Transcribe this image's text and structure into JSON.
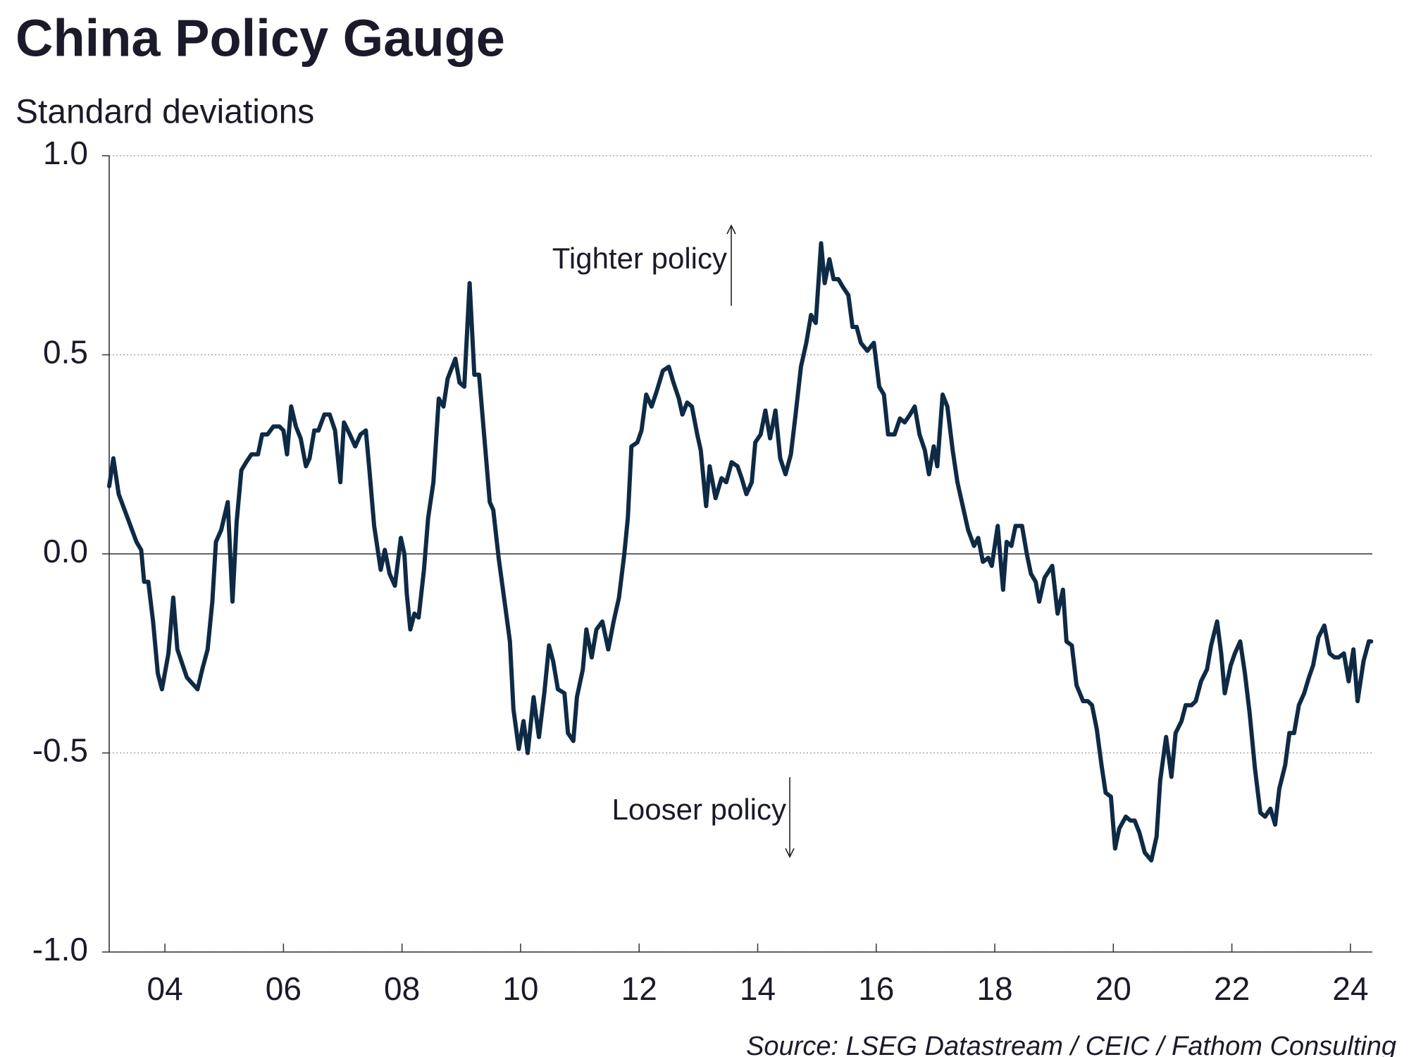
{
  "chart_data": {
    "type": "line",
    "title": "China Policy Gauge",
    "subtitle": "Standard deviations",
    "source": "Source: LSEG Datastream / CEIC / Fathom Consulting",
    "annotations": [
      "Tighter policy",
      "Looser policy"
    ],
    "xlim": [
      2003.06,
      2024.37
    ],
    "xticks": [
      {
        "value": 2004,
        "label": "04"
      },
      {
        "value": 2006,
        "label": "06"
      },
      {
        "value": 2008,
        "label": "08"
      },
      {
        "value": 2010,
        "label": "10"
      },
      {
        "value": 2012,
        "label": "12"
      },
      {
        "value": 2014,
        "label": "14"
      },
      {
        "value": 2016,
        "label": "16"
      },
      {
        "value": 2018,
        "label": "18"
      },
      {
        "value": 2020,
        "label": "20"
      },
      {
        "value": 2022,
        "label": "22"
      },
      {
        "value": 2024,
        "label": "24"
      }
    ],
    "ylim": [
      -1,
      1
    ],
    "yticks": [
      {
        "value": -1,
        "label": "-1.0"
      },
      {
        "value": -0.5,
        "label": "-0.5"
      },
      {
        "value": 0,
        "label": "0.0"
      },
      {
        "value": 0.5,
        "label": "0.5"
      },
      {
        "value": 1,
        "label": "1.0"
      }
    ],
    "grid": true,
    "x": [
      2003.06,
      2003.13,
      2003.22,
      2003.37,
      2003.52,
      2003.6,
      2003.65,
      2003.72,
      2003.8,
      2003.88,
      2003.95,
      2004.06,
      2004.14,
      2004.21,
      2004.37,
      2004.55,
      2004.63,
      2004.72,
      2004.8,
      2004.86,
      2004.95,
      2005.06,
      2005.14,
      2005.21,
      2005.29,
      2005.37,
      2005.46,
      2005.57,
      2005.64,
      2005.73,
      2005.83,
      2005.93,
      2006.0,
      2006.06,
      2006.13,
      2006.21,
      2006.29,
      2006.38,
      2006.44,
      2006.52,
      2006.59,
      2006.69,
      2006.78,
      2006.87,
      2006.96,
      2007.02,
      2007.12,
      2007.21,
      2007.3,
      2007.39,
      2007.45,
      2007.53,
      2007.64,
      2007.71,
      2007.79,
      2007.88,
      2007.98,
      2008.04,
      2008.08,
      2008.14,
      2008.21,
      2008.28,
      2008.37,
      2008.44,
      2008.53,
      2008.62,
      2008.7,
      2008.77,
      2008.9,
      2008.97,
      2009.05,
      2009.14,
      2009.22,
      2009.3,
      2009.39,
      2009.48,
      2009.54,
      2009.63,
      2009.74,
      2009.82,
      2009.88,
      2009.97,
      2010.05,
      2010.12,
      2010.22,
      2010.31,
      2010.4,
      2010.48,
      2010.55,
      2010.63,
      2010.74,
      2010.8,
      2010.89,
      2010.95,
      2011.05,
      2011.11,
      2011.2,
      2011.28,
      2011.38,
      2011.48,
      2011.57,
      2011.66,
      2011.75,
      2011.81,
      2011.87,
      2011.97,
      2012.04,
      2012.12,
      2012.21,
      2012.3,
      2012.4,
      2012.5,
      2012.58,
      2012.67,
      2012.73,
      2012.81,
      2012.89,
      2012.98,
      2013.04,
      2013.13,
      2013.19,
      2013.29,
      2013.39,
      2013.47,
      2013.56,
      2013.66,
      2013.73,
      2013.81,
      2013.9,
      2013.96,
      2014.05,
      2014.13,
      2014.21,
      2014.3,
      2014.38,
      2014.47,
      2014.56,
      2014.64,
      2014.73,
      2014.82,
      2014.9,
      2014.98,
      2015.07,
      2015.13,
      2015.21,
      2015.28,
      2015.36,
      2015.44,
      2015.53,
      2015.6,
      2015.67,
      2015.74,
      2015.85,
      2015.96,
      2016.05,
      2016.13,
      2016.2,
      2016.31,
      2016.4,
      2016.48,
      2016.57,
      2016.65,
      2016.73,
      2016.82,
      2016.89,
      2016.97,
      2017.03,
      2017.12,
      2017.2,
      2017.29,
      2017.37,
      2017.46,
      2017.55,
      2017.65,
      2017.72,
      2017.8,
      2017.89,
      2017.95,
      2018.05,
      2018.14,
      2018.2,
      2018.28,
      2018.35,
      2018.46,
      2018.54,
      2018.61,
      2018.69,
      2018.75,
      2018.84,
      2018.97,
      2019.06,
      2019.15,
      2019.21,
      2019.3,
      2019.38,
      2019.49,
      2019.57,
      2019.64,
      2019.72,
      2019.8,
      2019.87,
      2019.96,
      2020.03,
      2020.1,
      2020.21,
      2020.29,
      2020.36,
      2020.44,
      2020.53,
      2020.64,
      2020.73,
      2020.79,
      2020.89,
      2020.98,
      2021.05,
      2021.15,
      2021.22,
      2021.32,
      2021.39,
      2021.48,
      2021.58,
      2021.65,
      2021.75,
      2021.82,
      2021.88,
      2021.98,
      2022.05,
      2022.14,
      2022.22,
      2022.3,
      2022.39,
      2022.48,
      2022.56,
      2022.65,
      2022.73,
      2022.8,
      2022.9,
      2022.97,
      2023.05,
      2023.13,
      2023.22,
      2023.3,
      2023.37,
      2023.46,
      2023.56,
      2023.65,
      2023.73,
      2023.8,
      2023.89,
      2023.97,
      2024.05,
      2024.12,
      2024.22,
      2024.31,
      2024.35
    ],
    "series": [
      {
        "name": "China Policy Gauge",
        "color": "#0e2a44",
        "values": [
          0.17,
          0.24,
          0.15,
          0.09,
          0.03,
          0.01,
          -0.07,
          -0.07,
          -0.17,
          -0.3,
          -0.34,
          -0.25,
          -0.11,
          -0.24,
          -0.31,
          -0.34,
          -0.29,
          -0.24,
          -0.12,
          0.03,
          0.06,
          0.13,
          -0.12,
          0.08,
          0.21,
          0.23,
          0.25,
          0.25,
          0.3,
          0.3,
          0.32,
          0.32,
          0.31,
          0.25,
          0.37,
          0.32,
          0.29,
          0.22,
          0.24,
          0.31,
          0.31,
          0.35,
          0.35,
          0.31,
          0.18,
          0.33,
          0.3,
          0.27,
          0.3,
          0.31,
          0.21,
          0.07,
          -0.04,
          0.01,
          -0.05,
          -0.08,
          0.04,
          0.0,
          -0.1,
          -0.19,
          -0.15,
          -0.16,
          -0.04,
          0.09,
          0.18,
          0.39,
          0.37,
          0.44,
          0.49,
          0.43,
          0.42,
          0.68,
          0.45,
          0.45,
          0.29,
          0.13,
          0.11,
          -0.01,
          -0.13,
          -0.22,
          -0.39,
          -0.49,
          -0.42,
          -0.5,
          -0.36,
          -0.46,
          -0.35,
          -0.23,
          -0.27,
          -0.34,
          -0.35,
          -0.45,
          -0.47,
          -0.36,
          -0.29,
          -0.19,
          -0.26,
          -0.19,
          -0.17,
          -0.24,
          -0.17,
          -0.11,
          0.0,
          0.09,
          0.27,
          0.28,
          0.31,
          0.4,
          0.37,
          0.41,
          0.46,
          0.47,
          0.43,
          0.39,
          0.35,
          0.38,
          0.37,
          0.3,
          0.26,
          0.12,
          0.22,
          0.14,
          0.19,
          0.18,
          0.23,
          0.22,
          0.19,
          0.15,
          0.18,
          0.28,
          0.3,
          0.36,
          0.29,
          0.36,
          0.24,
          0.2,
          0.25,
          0.35,
          0.47,
          0.53,
          0.6,
          0.58,
          0.78,
          0.68,
          0.74,
          0.69,
          0.69,
          0.67,
          0.65,
          0.57,
          0.57,
          0.53,
          0.51,
          0.53,
          0.42,
          0.4,
          0.3,
          0.3,
          0.34,
          0.33,
          0.35,
          0.37,
          0.3,
          0.26,
          0.2,
          0.27,
          0.22,
          0.4,
          0.37,
          0.26,
          0.18,
          0.12,
          0.06,
          0.02,
          0.04,
          -0.02,
          -0.01,
          -0.03,
          0.07,
          -0.09,
          0.03,
          0.02,
          0.07,
          0.07,
          0.0,
          -0.05,
          -0.07,
          -0.12,
          -0.06,
          -0.03,
          -0.15,
          -0.09,
          -0.22,
          -0.23,
          -0.33,
          -0.37,
          -0.37,
          -0.38,
          -0.44,
          -0.53,
          -0.6,
          -0.61,
          -0.74,
          -0.69,
          -0.66,
          -0.67,
          -0.67,
          -0.7,
          -0.75,
          -0.77,
          -0.71,
          -0.57,
          -0.46,
          -0.56,
          -0.45,
          -0.42,
          -0.38,
          -0.38,
          -0.37,
          -0.32,
          -0.29,
          -0.23,
          -0.17,
          -0.25,
          -0.35,
          -0.28,
          -0.25,
          -0.22,
          -0.3,
          -0.4,
          -0.54,
          -0.65,
          -0.66,
          -0.64,
          -0.68,
          -0.59,
          -0.53,
          -0.45,
          -0.45,
          -0.38,
          -0.35,
          -0.31,
          -0.28,
          -0.21,
          -0.18,
          -0.25,
          -0.26,
          -0.26,
          -0.25,
          -0.32,
          -0.24,
          -0.37,
          -0.27,
          -0.22,
          -0.22
        ]
      }
    ]
  }
}
